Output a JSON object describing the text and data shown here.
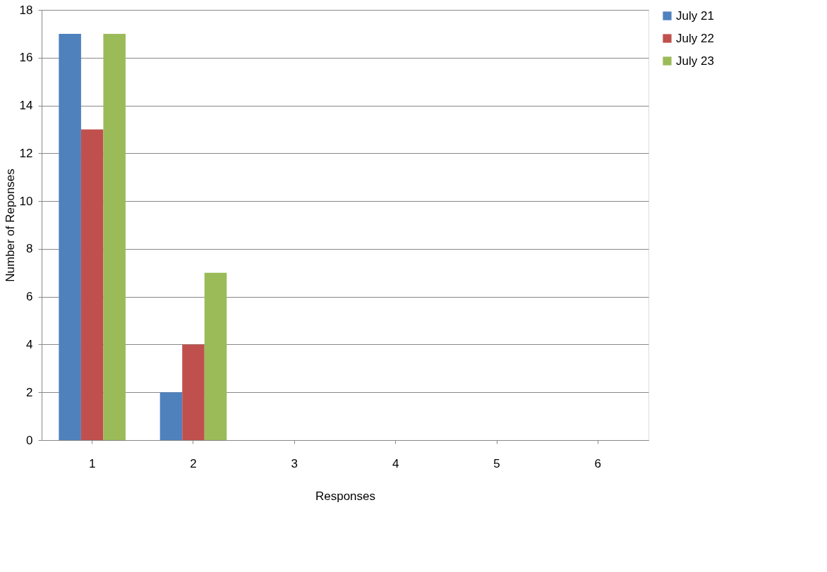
{
  "chart_data": {
    "type": "bar",
    "xlabel": "Responses",
    "ylabel": "Number of Reponses",
    "categories": [
      "1",
      "2",
      "3",
      "4",
      "5",
      "6"
    ],
    "series": [
      {
        "name": "July 21",
        "color": "#4f81bd",
        "values": [
          17,
          2,
          0,
          0,
          0,
          0
        ]
      },
      {
        "name": "July 22",
        "color": "#c0504d",
        "values": [
          13,
          4,
          0,
          0,
          0,
          0
        ]
      },
      {
        "name": "July 23",
        "color": "#9bbb59",
        "values": [
          17,
          7,
          0,
          0,
          0,
          0
        ]
      }
    ],
    "ylim": [
      0,
      18
    ],
    "yticks": [
      0,
      2,
      4,
      6,
      8,
      10,
      12,
      14,
      16,
      18
    ],
    "grid": "y",
    "legend": "right"
  }
}
